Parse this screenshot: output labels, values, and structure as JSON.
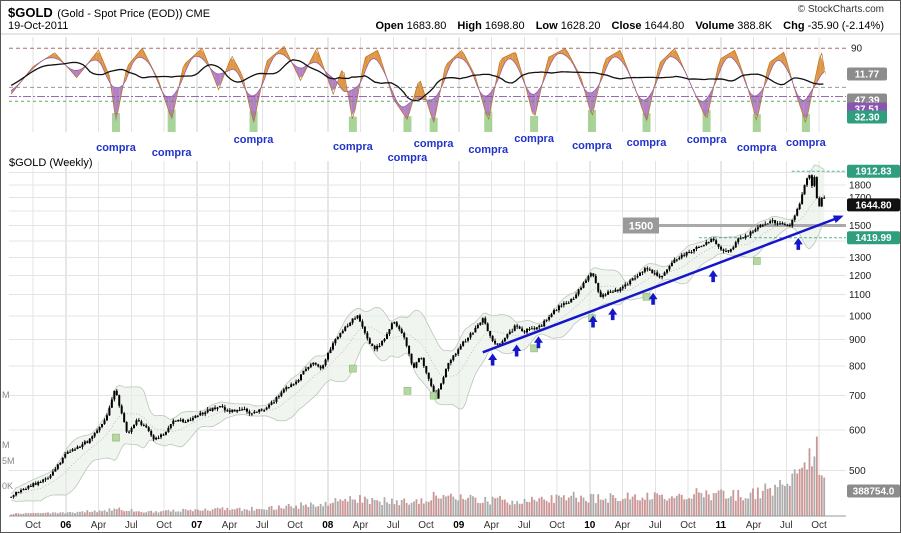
{
  "header": {
    "symbol": "$GOLD",
    "title_rest": "(Gold - Spot Price (EOD)) CME",
    "date": "19-Oct-2011",
    "copyright": "© StockCharts.com",
    "quote": [
      {
        "label": "Open",
        "value": "1683.80"
      },
      {
        "label": "High",
        "value": "1698.80"
      },
      {
        "label": "Low",
        "value": "1628.20"
      },
      {
        "label": "Close",
        "value": "1644.80"
      },
      {
        "label": "Volume",
        "value": "388.8K"
      },
      {
        "label": "Chg",
        "value": "-35.90 (-2.14%)"
      }
    ]
  },
  "main_label": "$GOLD (Weekly)",
  "colors": {
    "compra_text": "#2233cc",
    "trendline": "#1515cc",
    "signal_green": "#99cc88",
    "box_green": "#2e9e7e",
    "box_black": "#111111",
    "box_gray": "#8c8c8c",
    "box_purple": "#8a55b0",
    "band_fill": "#e9efe8",
    "volume_red": "#c89090",
    "volume_gray": "#a8a8a8",
    "orange": "#dd8b33",
    "purple": "#a873bd",
    "orange_line": "#b9751f",
    "purple_line": "#9257ac"
  },
  "chart_data": [
    {
      "type": "area",
      "title": "oscillator-panel",
      "ylim": [
        0,
        100
      ],
      "right_labels": [
        {
          "text": "90",
          "style": "plain",
          "value": 90
        },
        {
          "text": "11.77",
          "style": "box_gray",
          "y": 73
        },
        {
          "text": "47.39",
          "style": "box_gray",
          "y": 99
        },
        {
          "text": "37.51",
          "style": "box_purple",
          "y": 108
        },
        {
          "text": "32.30",
          "style": "box_green",
          "y": 116
        }
      ],
      "threshold_lines": [
        {
          "value": 90,
          "color": "#a05555",
          "dash": "4,3"
        },
        {
          "value": 47.39,
          "color": "#888888",
          "dash": "4,3"
        },
        {
          "value": 37.51,
          "color": "#8a4fb0",
          "dash": "8,2,2,2"
        },
        {
          "value": 32.3,
          "color": "#3f9e3f",
          "dash": "3,3"
        }
      ],
      "series_anchors": [
        [
          -2,
          40
        ],
        [
          0,
          70
        ],
        [
          2,
          85
        ],
        [
          4,
          58
        ],
        [
          6,
          88
        ],
        [
          7.0,
          60
        ],
        [
          7.6,
          10
        ],
        [
          8.6,
          70
        ],
        [
          10,
          90
        ],
        [
          11.5,
          55
        ],
        [
          12.7,
          12
        ],
        [
          13.8,
          72
        ],
        [
          15.5,
          90
        ],
        [
          17,
          45
        ],
        [
          18.2,
          82
        ],
        [
          19.2,
          60
        ],
        [
          20.2,
          8
        ],
        [
          21.4,
          76
        ],
        [
          23,
          92
        ],
        [
          24.5,
          55
        ],
        [
          26,
          90
        ],
        [
          27.5,
          40
        ],
        [
          28.4,
          70
        ],
        [
          29.3,
          10
        ],
        [
          30.4,
          80
        ],
        [
          31.6,
          88
        ],
        [
          33,
          35
        ],
        [
          34.3,
          12
        ],
        [
          35.4,
          58
        ],
        [
          36.7,
          8
        ],
        [
          37.8,
          72
        ],
        [
          39.3,
          88
        ],
        [
          40.5,
          60
        ],
        [
          41.7,
          10
        ],
        [
          42.8,
          78
        ],
        [
          44.2,
          86
        ],
        [
          45.1,
          50
        ],
        [
          45.9,
          12
        ],
        [
          47.2,
          80
        ],
        [
          48.8,
          90
        ],
        [
          50.2,
          58
        ],
        [
          51.2,
          15
        ],
        [
          52.4,
          78
        ],
        [
          53.8,
          88
        ],
        [
          55.2,
          45
        ],
        [
          56.2,
          10
        ],
        [
          57.4,
          74
        ],
        [
          58.8,
          90
        ],
        [
          60.2,
          52
        ],
        [
          61.7,
          12
        ],
        [
          62.9,
          78
        ],
        [
          64.3,
          88
        ],
        [
          65.4,
          50
        ],
        [
          66.3,
          10
        ],
        [
          67.4,
          74
        ],
        [
          68.8,
          86
        ],
        [
          69.9,
          40
        ],
        [
          70.8,
          8
        ],
        [
          71.6,
          55
        ],
        [
          72.2,
          88
        ],
        [
          72.6,
          60
        ]
      ],
      "signals": [
        {
          "m": 7.6,
          "label": "compra",
          "label_y": 150
        },
        {
          "m": 12.7,
          "label": "compra",
          "label_y": 155
        },
        {
          "m": 20.2,
          "label": "compra",
          "label_y": 142
        },
        {
          "m": 29.3,
          "label": "compra",
          "label_y": 149
        },
        {
          "m": 34.3,
          "label": "compra",
          "label_y": 160
        },
        {
          "m": 36.7,
          "label": "compra",
          "label_y": 146
        },
        {
          "m": 41.7,
          "label": "compra",
          "label_y": 152
        },
        {
          "m": 45.9,
          "label": "compra",
          "label_y": 141
        },
        {
          "m": 51.2,
          "label": "compra",
          "label_y": 148
        },
        {
          "m": 56.2,
          "label": "compra",
          "label_y": 145
        },
        {
          "m": 61.7,
          "label": "compra",
          "label_y": 142
        },
        {
          "m": 66.3,
          "label": "compra",
          "label_y": 150
        },
        {
          "m": 70.8,
          "label": "compra",
          "label_y": 145
        }
      ]
    },
    {
      "type": "candlestick",
      "title": "$GOLD (Weekly)",
      "yaxis_log": true,
      "ylim": [
        430,
        1980
      ],
      "price_gridlines": [
        1900,
        1800,
        1700,
        1600,
        1500,
        1400,
        1300,
        1200,
        1100,
        1000,
        900,
        800,
        700,
        600,
        500
      ],
      "price_tick_labels": [
        1800,
        1700,
        1500,
        1300,
        1200,
        1100,
        1000,
        900,
        800,
        700,
        600,
        500
      ],
      "axis_boxes": [
        {
          "text": "1912.83",
          "price": 1912.83,
          "style": "box_green"
        },
        {
          "text": "1644.80",
          "price": 1644.8,
          "style": "box_black"
        },
        {
          "text": "1419.99",
          "price": 1419.99,
          "style": "box_green"
        }
      ],
      "level_lines": [
        {
          "price": 1912.83,
          "m_start": 69.5
        },
        {
          "price": 1419.99,
          "m_start": 61
        }
      ],
      "annotation_1500": {
        "text": "1500",
        "price": 1500
      },
      "trendline": {
        "from": [
          41.2,
          850
        ],
        "to": [
          74,
          1560
        ]
      },
      "arrows_m": [
        42.1,
        44.3,
        46.3,
        51.3,
        53.1,
        56.8,
        62.3,
        70.1
      ],
      "green_markers": [
        [
          7.6,
          580
        ],
        [
          29.3,
          790
        ],
        [
          34.3,
          715
        ],
        [
          36.7,
          700
        ],
        [
          45.9,
          865
        ],
        [
          51.2,
          990
        ],
        [
          56.2,
          1090
        ],
        [
          66.3,
          1280
        ]
      ],
      "price_anchors": [
        [
          -2,
          448
        ],
        [
          0,
          470
        ],
        [
          1,
          478
        ],
        [
          2,
          500
        ],
        [
          3,
          540
        ],
        [
          4,
          555
        ],
        [
          5,
          570
        ],
        [
          6,
          600
        ],
        [
          6.8,
          640
        ],
        [
          7.5,
          722
        ],
        [
          8,
          660
        ],
        [
          8.6,
          590
        ],
        [
          9.5,
          625
        ],
        [
          10.5,
          600
        ],
        [
          11,
          575
        ],
        [
          12,
          590
        ],
        [
          13,
          628
        ],
        [
          14,
          625
        ],
        [
          15,
          640
        ],
        [
          16,
          655
        ],
        [
          17,
          668
        ],
        [
          18,
          650
        ],
        [
          19,
          662
        ],
        [
          20,
          645
        ],
        [
          21,
          658
        ],
        [
          22,
          682
        ],
        [
          23,
          720
        ],
        [
          24,
          740
        ],
        [
          25,
          788
        ],
        [
          25.6,
          808
        ],
        [
          26.5,
          790
        ],
        [
          27.5,
          890
        ],
        [
          29,
          968
        ],
        [
          29.7,
          1005
        ],
        [
          30.5,
          910
        ],
        [
          31.3,
          862
        ],
        [
          32,
          890
        ],
        [
          33,
          975
        ],
        [
          34,
          905
        ],
        [
          34.8,
          790
        ],
        [
          35.5,
          835
        ],
        [
          36.3,
          745
        ],
        [
          36.9,
          692
        ],
        [
          37.5,
          755
        ],
        [
          38.2,
          820
        ],
        [
          39,
          865
        ],
        [
          39.7,
          905
        ],
        [
          40.5,
          940
        ],
        [
          41.2,
          990
        ],
        [
          42,
          895
        ],
        [
          42.6,
          875
        ],
        [
          43.5,
          925
        ],
        [
          44.2,
          955
        ],
        [
          44.9,
          930
        ],
        [
          45.6,
          945
        ],
        [
          46.5,
          955
        ],
        [
          47.3,
          1000
        ],
        [
          48.2,
          1045
        ],
        [
          49,
          1060
        ],
        [
          49.8,
          1105
        ],
        [
          50.6,
          1175
        ],
        [
          51.2,
          1210
        ],
        [
          51.9,
          1095
        ],
        [
          52.7,
          1110
        ],
        [
          53.6,
          1125
        ],
        [
          54.5,
          1160
        ],
        [
          55.3,
          1200
        ],
        [
          56.1,
          1235
        ],
        [
          56.8,
          1215
        ],
        [
          57.5,
          1185
        ],
        [
          58.3,
          1245
        ],
        [
          59,
          1300
        ],
        [
          59.8,
          1320
        ],
        [
          60.6,
          1350
        ],
        [
          61.5,
          1385
        ],
        [
          62.3,
          1415
        ],
        [
          63.1,
          1345
        ],
        [
          63.8,
          1330
        ],
        [
          64.6,
          1410
        ],
        [
          65.4,
          1435
        ],
        [
          66.2,
          1480
        ],
        [
          67,
          1510
        ],
        [
          67.8,
          1530
        ],
        [
          68.5,
          1505
        ],
        [
          69.2,
          1495
        ],
        [
          69.8,
          1560
        ],
        [
          70.3,
          1680
        ],
        [
          70.8,
          1830
        ],
        [
          71.1,
          1900
        ],
        [
          71.35,
          1790
        ],
        [
          71.6,
          1870
        ],
        [
          71.85,
          1650
        ],
        [
          72.1,
          1640
        ],
        [
          72.35,
          1740
        ],
        [
          72.6,
          1650
        ]
      ],
      "x_ticks": [
        {
          "m": 0,
          "label": "Oct"
        },
        {
          "m": 3,
          "label": "06",
          "year": true
        },
        {
          "m": 6,
          "label": "Apr"
        },
        {
          "m": 9,
          "label": "Jul"
        },
        {
          "m": 12,
          "label": "Oct"
        },
        {
          "m": 15,
          "label": "07",
          "year": true
        },
        {
          "m": 18,
          "label": "Apr"
        },
        {
          "m": 21,
          "label": "Jul"
        },
        {
          "m": 24,
          "label": "Oct"
        },
        {
          "m": 27,
          "label": "08",
          "year": true
        },
        {
          "m": 30,
          "label": "Apr"
        },
        {
          "m": 33,
          "label": "Jul"
        },
        {
          "m": 36,
          "label": "Oct"
        },
        {
          "m": 39,
          "label": "09",
          "year": true
        },
        {
          "m": 42,
          "label": "Apr"
        },
        {
          "m": 45,
          "label": "Jul"
        },
        {
          "m": 48,
          "label": "Oct"
        },
        {
          "m": 51,
          "label": "10",
          "year": true
        },
        {
          "m": 54,
          "label": "Apr"
        },
        {
          "m": 57,
          "label": "Jul"
        },
        {
          "m": 60,
          "label": "Oct"
        },
        {
          "m": 63,
          "label": "11",
          "year": true
        },
        {
          "m": 66,
          "label": "Apr"
        },
        {
          "m": 69,
          "label": "Jul"
        },
        {
          "m": 72,
          "label": "Oct"
        }
      ],
      "left_labels": [
        {
          "text": "M",
          "y": 397
        },
        {
          "text": "M",
          "y": 447
        },
        {
          "text": "5M",
          "y": 463
        },
        {
          "text": "0K",
          "y": 488
        }
      ]
    },
    {
      "type": "bar",
      "title": "volume",
      "volume_anchors": [
        [
          -2,
          35
        ],
        [
          2,
          45
        ],
        [
          6,
          80
        ],
        [
          8,
          110
        ],
        [
          10,
          70
        ],
        [
          12,
          75
        ],
        [
          15,
          95
        ],
        [
          18,
          105
        ],
        [
          21,
          115
        ],
        [
          24,
          150
        ],
        [
          26,
          190
        ],
        [
          28,
          220
        ],
        [
          29.7,
          265
        ],
        [
          31,
          235
        ],
        [
          33,
          215
        ],
        [
          35,
          235
        ],
        [
          36.8,
          310
        ],
        [
          38,
          275
        ],
        [
          40,
          255
        ],
        [
          42,
          235
        ],
        [
          44,
          245
        ],
        [
          46,
          240
        ],
        [
          48,
          260
        ],
        [
          50,
          295
        ],
        [
          51.5,
          270
        ],
        [
          53,
          285
        ],
        [
          55,
          305
        ],
        [
          56.5,
          320
        ],
        [
          58,
          300
        ],
        [
          60,
          330
        ],
        [
          62,
          340
        ],
        [
          63.5,
          320
        ],
        [
          65,
          345
        ],
        [
          66.5,
          375
        ],
        [
          68,
          430
        ],
        [
          69.5,
          520
        ],
        [
          70.5,
          780
        ],
        [
          71,
          1020
        ],
        [
          71.4,
          880
        ],
        [
          71.9,
          980
        ],
        [
          72.3,
          560
        ],
        [
          72.6,
          390
        ]
      ],
      "last_label": {
        "text": "388754.0"
      }
    }
  ]
}
